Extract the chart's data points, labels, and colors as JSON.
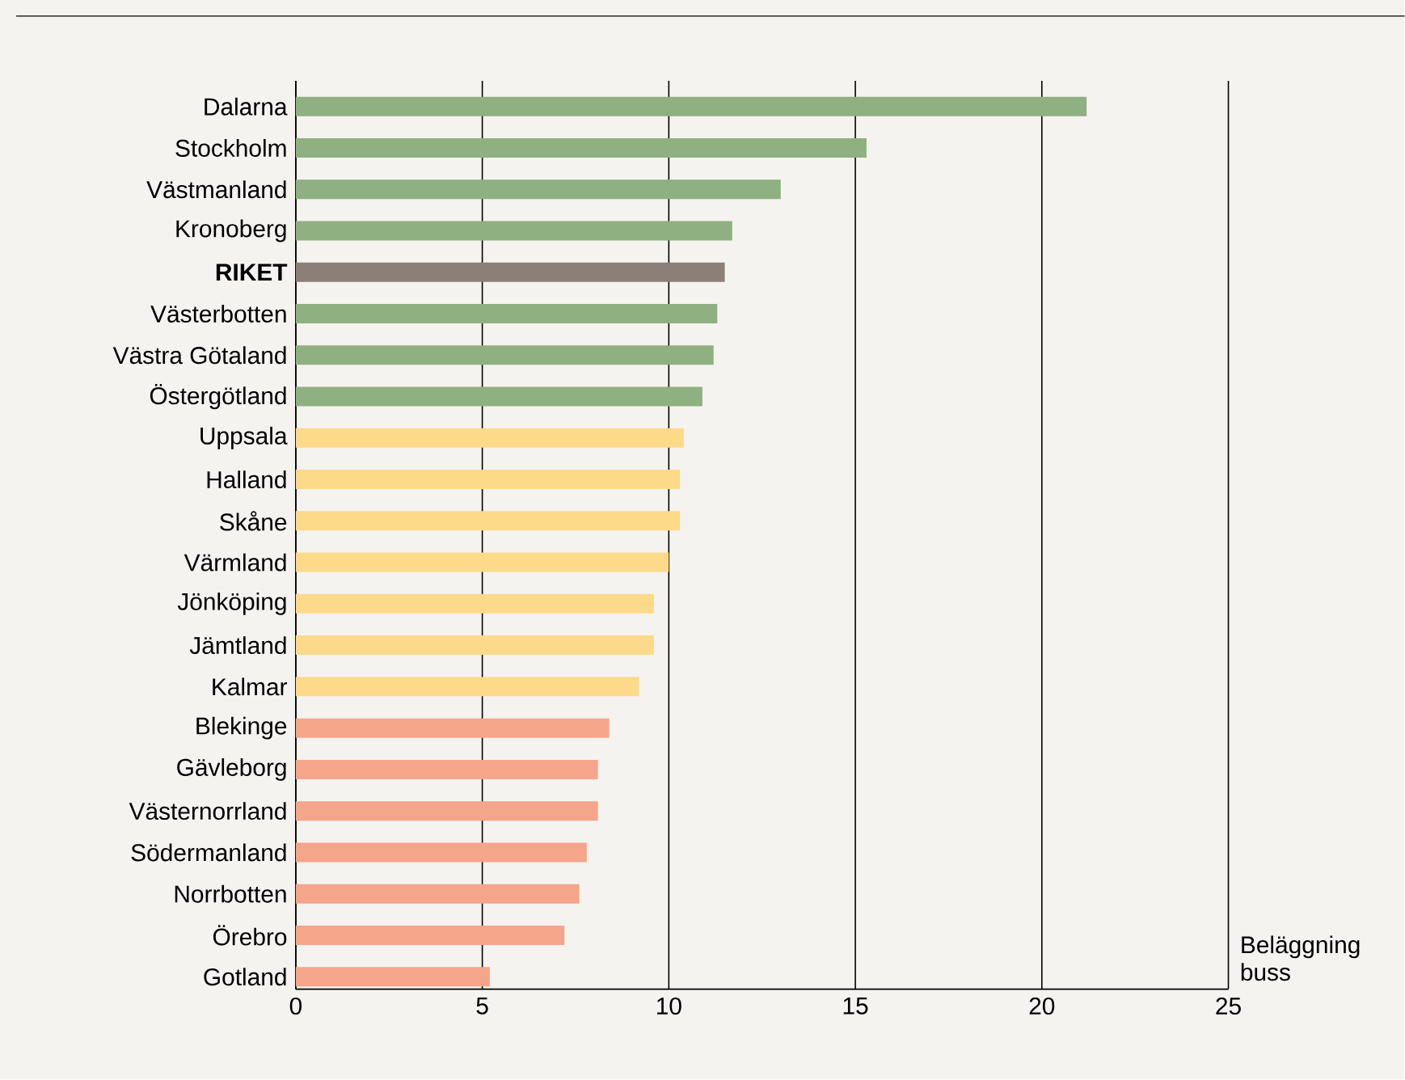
{
  "chart_data": {
    "type": "bar",
    "orientation": "horizontal",
    "xlabel": "Beläggning buss",
    "categories": [
      "Dalarna",
      "Stockholm",
      "Västmanland",
      "Kronoberg",
      "**RIKET**",
      "Västerbotten",
      "Västra Götaland",
      "Östergötland",
      "Uppsala",
      "Halland",
      "Skåne",
      "Värmland",
      "Jönköping",
      "Jämtland",
      "Kalmar",
      "Blekinge",
      "Gävleborg",
      "Västernorrland",
      "Södermanland",
      "Norrbotten",
      "Örebro",
      "Gotland"
    ],
    "values": [
      21.2,
      15.3,
      13.0,
      11.7,
      11.5,
      11.3,
      11.2,
      10.9,
      10.4,
      10.3,
      10.3,
      10.0,
      9.6,
      9.6,
      9.2,
      8.4,
      8.1,
      8.1,
      7.8,
      7.6,
      7.2,
      5.2
    ],
    "colors": [
      "#8fb080",
      "#8fb080",
      "#8fb080",
      "#8fb080",
      "#8c7f78",
      "#8fb080",
      "#8fb080",
      "#8fb080",
      "#fdd98a",
      "#fdd98a",
      "#fdd98a",
      "#fdd98a",
      "#fdd98a",
      "#fdd98a",
      "#fdd98a",
      "#f4a58a",
      "#f4a58a",
      "#f4a58a",
      "#f4a58a",
      "#f4a58a",
      "#f4a58a",
      "#f4a58a"
    ],
    "xlim": [
      0,
      25
    ],
    "xticks": [
      0,
      5,
      10,
      15,
      20,
      25
    ],
    "grid": "x"
  }
}
